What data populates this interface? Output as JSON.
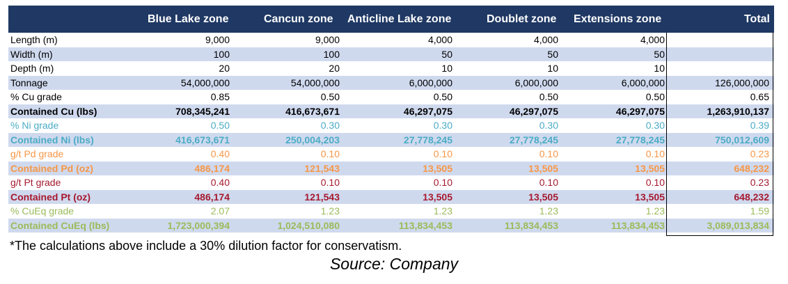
{
  "header": {
    "columns": [
      "",
      "Blue Lake zone",
      "Cancun zone",
      "Anticline Lake zone",
      "Doublet zone",
      "Extensions zone",
      "Total"
    ]
  },
  "rows": [
    {
      "label": "Length (m)",
      "values": [
        "9,000",
        "9,000",
        "4,000",
        "4,000",
        "4,000",
        ""
      ],
      "color": "#000000",
      "bold": false
    },
    {
      "label": "Width (m)",
      "values": [
        "100",
        "100",
        "50",
        "50",
        "50",
        ""
      ],
      "color": "#000000",
      "bold": false
    },
    {
      "label": "Depth (m)",
      "values": [
        "20",
        "20",
        "10",
        "10",
        "10",
        ""
      ],
      "color": "#000000",
      "bold": false
    },
    {
      "label": "Tonnage",
      "values": [
        "54,000,000",
        "54,000,000",
        "6,000,000",
        "6,000,000",
        "6,000,000",
        "126,000,000"
      ],
      "color": "#000000",
      "bold": false
    },
    {
      "label": "% Cu grade",
      "values": [
        "0.85",
        "0.50",
        "0.50",
        "0.50",
        "0.50",
        "0.65"
      ],
      "color": "#000000",
      "bold": false
    },
    {
      "label": "Contained Cu (lbs)",
      "values": [
        "708,345,241",
        "416,673,671",
        "46,297,075",
        "46,297,075",
        "46,297,075",
        "1,263,910,137"
      ],
      "color": "#000000",
      "bold": true
    },
    {
      "label": "% Ni grade",
      "values": [
        "0.50",
        "0.30",
        "0.30",
        "0.30",
        "0.30",
        "0.39"
      ],
      "color": "#4bacc6",
      "bold": false
    },
    {
      "label": "Contained Ni (lbs)",
      "values": [
        "416,673,671",
        "250,004,203",
        "27,778,245",
        "27,778,245",
        "27,778,245",
        "750,012,609"
      ],
      "color": "#4bacc6",
      "bold": true
    },
    {
      "label": "g/t Pd grade",
      "values": [
        "0.40",
        "0.10",
        "0.10",
        "0.10",
        "0.10",
        "0.23"
      ],
      "color": "#f79646",
      "bold": false
    },
    {
      "label": "Contained Pd (oz)",
      "values": [
        "486,174",
        "121,543",
        "13,505",
        "13,505",
        "13,505",
        "648,232"
      ],
      "color": "#f79646",
      "bold": true
    },
    {
      "label": "g/t Pt grade",
      "values": [
        "0.40",
        "0.10",
        "0.10",
        "0.10",
        "0.10",
        "0.23"
      ],
      "color": "#a6192e",
      "bold": false
    },
    {
      "label": "Contained Pt (oz)",
      "values": [
        "486,174",
        "121,543",
        "13,505",
        "13,505",
        "13,505",
        "648,232"
      ],
      "color": "#a6192e",
      "bold": true
    },
    {
      "label": "% CuEq grade",
      "values": [
        "2.07",
        "1.23",
        "1.23",
        "1.23",
        "1.23",
        "1.59"
      ],
      "color": "#9bbb59",
      "bold": false
    },
    {
      "label": "Contained CuEq (lbs)",
      "values": [
        "1,723,000,394",
        "1,024,510,080",
        "113,834,453",
        "113,834,453",
        "113,834,453",
        "3,089,013,834"
      ],
      "color": "#9bbb59",
      "bold": true
    }
  ],
  "colors": {
    "header_bg": "#1f3864",
    "band_bg": "#cfd9ee",
    "black": "#000000",
    "nickel": "#4bacc6",
    "palladium": "#f79646",
    "platinum": "#a6192e",
    "cueq": "#9bbb59"
  },
  "footnote": "*The calculations above include a 30% dilution factor for conservatism.",
  "source": "Source: Company"
}
